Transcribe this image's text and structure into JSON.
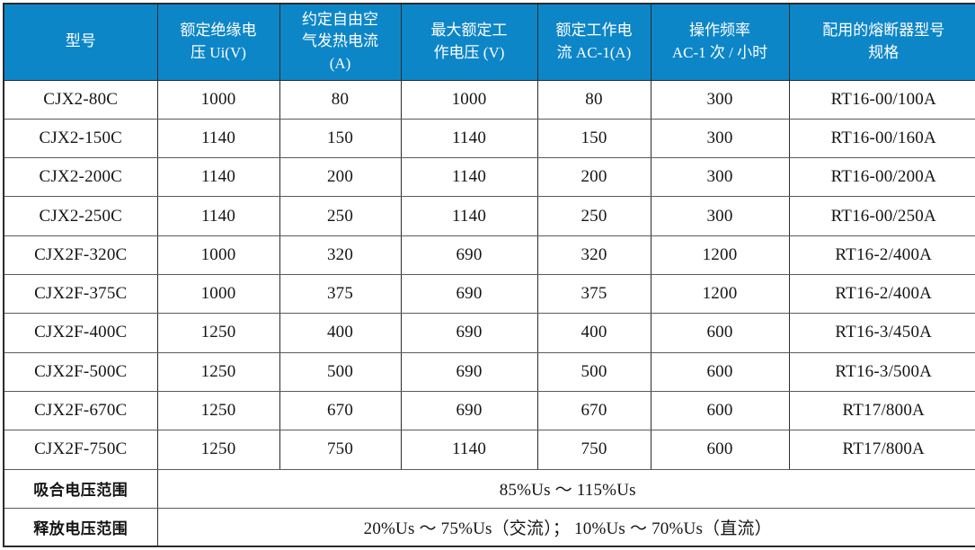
{
  "table": {
    "colors": {
      "header_bg": "#0d86c8",
      "header_text": "#ffffff",
      "border_dark": "#2b2b2b",
      "border_gray": "#5a5a5a"
    },
    "columns": [
      "型号",
      "额定绝缘电\n压 Ui(V)",
      "约定自由空\n气发热电流\n(A)",
      "最大额定工\n作电压 (V)",
      "额定工作电\n流 AC-1(A)",
      "操作频率\nAC-1 次 / 小时",
      "配用的熔断器型号\n规格"
    ],
    "rows": [
      [
        "CJX2-80C",
        "1000",
        "80",
        "1000",
        "80",
        "300",
        "RT16-00/100A"
      ],
      [
        "CJX2-150C",
        "1140",
        "150",
        "1140",
        "150",
        "300",
        "RT16-00/160A"
      ],
      [
        "CJX2-200C",
        "1140",
        "200",
        "1140",
        "200",
        "300",
        "RT16-00/200A"
      ],
      [
        "CJX2-250C",
        "1140",
        "250",
        "1140",
        "250",
        "300",
        "RT16-00/250A"
      ],
      [
        "CJX2F-320C",
        "1000",
        "320",
        "690",
        "320",
        "1200",
        "RT16-2/400A"
      ],
      [
        "CJX2F-375C",
        "1000",
        "375",
        "690",
        "375",
        "1200",
        "RT16-2/400A"
      ],
      [
        "CJX2F-400C",
        "1250",
        "400",
        "690",
        "400",
        "600",
        "RT16-3/450A"
      ],
      [
        "CJX2F-500C",
        "1250",
        "500",
        "690",
        "500",
        "600",
        "RT16-3/500A"
      ],
      [
        "CJX2F-670C",
        "1250",
        "670",
        "690",
        "670",
        "600",
        "RT17/800A"
      ],
      [
        "CJX2F-750C",
        "1250",
        "750",
        "1140",
        "750",
        "600",
        "RT17/800A"
      ]
    ],
    "footer_rows": [
      {
        "label": "吸合电压范围",
        "value": "85%Us ～ 115%Us"
      },
      {
        "label": "释放电压范围",
        "value": "20%Us ～ 75%Us（交流）； 10%Us ～ 70%Us（直流）"
      }
    ]
  }
}
